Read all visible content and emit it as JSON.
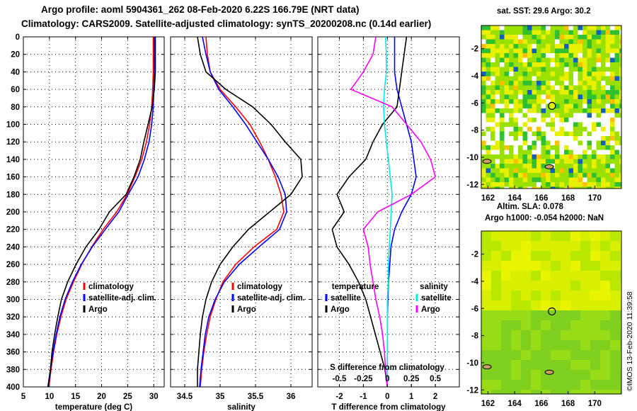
{
  "titles": {
    "line1": "Argo profile: aoml 5904361_262 08-Feb-2020 6.22S 166.79E (NRT data)",
    "line2": "Climatology: CARS2009. Satellite-adjusted climatology: synTS_20200208.nc (0.14d earlier)"
  },
  "maps": {
    "sst_title": "sat. SST: 29.6 Argo: 30.2",
    "sla_title1": "Altim. SLA: 0.078",
    "sla_title2": "Argo h1000: -0.054 h2000: NaN",
    "stamp": "©IMOS 13-Feb-2020 11:39:58",
    "lon_ticks": [
      162,
      164,
      166,
      168,
      170
    ],
    "lat_ticks": [
      -2,
      -4,
      -6,
      -8,
      -10,
      -12
    ],
    "lon_range": [
      161.5,
      172
    ],
    "lat_range": [
      -12.3,
      -0.3
    ],
    "profile_location": {
      "lon": 166.79,
      "lat": -6.22
    },
    "colors": {
      "warm": "#e8f000",
      "mid": "#9ae000",
      "cool": "#30c030",
      "cold": "#1060c0",
      "land": "#ffffff"
    }
  },
  "chart_data": [
    {
      "type": "line",
      "name": "temperature",
      "xlabel": "temperature (deg C)",
      "ylabel": "",
      "xlim": [
        5,
        32
      ],
      "ylim": [
        400,
        0
      ],
      "xticks": [
        5,
        10,
        15,
        20,
        25,
        30
      ],
      "yticks": [
        0,
        20,
        40,
        60,
        80,
        100,
        120,
        140,
        160,
        180,
        200,
        220,
        240,
        260,
        280,
        300,
        320,
        340,
        360,
        380,
        400
      ],
      "legend": [
        "climatology",
        "satellite-adj. clim.",
        "Argo"
      ],
      "series": [
        {
          "name": "climatology",
          "color": "#ff0000",
          "depth": [
            0,
            20,
            40,
            60,
            80,
            100,
            120,
            140,
            160,
            180,
            200,
            220,
            240,
            260,
            280,
            300,
            320,
            340,
            360,
            380,
            400
          ],
          "values": [
            29.9,
            29.9,
            29.9,
            29.8,
            29.6,
            29.2,
            28.6,
            27.7,
            26.4,
            24.9,
            22.9,
            20.3,
            18.1,
            16.2,
            14.6,
            13.2,
            12.2,
            11.4,
            10.8,
            10.3,
            9.9
          ]
        },
        {
          "name": "satellite-adj. clim.",
          "color": "#0000ff",
          "depth": [
            0,
            20,
            40,
            60,
            80,
            100,
            120,
            140,
            160,
            180,
            200,
            220,
            240,
            260,
            280,
            300,
            320,
            340,
            360,
            380,
            400
          ],
          "values": [
            30.1,
            30.1,
            30.1,
            30.0,
            29.9,
            29.6,
            29.1,
            28.2,
            27.0,
            25.1,
            23.3,
            20.7,
            18.2,
            16.1,
            14.4,
            13.0,
            12.0,
            11.3,
            10.7,
            10.2,
            9.8
          ]
        },
        {
          "name": "Argo",
          "color": "#000000",
          "depth": [
            0,
            20,
            40,
            60,
            80,
            100,
            120,
            140,
            160,
            180,
            200,
            220,
            240,
            260,
            280,
            300,
            320,
            340,
            360,
            380,
            400
          ],
          "values": [
            30.3,
            30.3,
            30.3,
            30.1,
            29.7,
            28.9,
            28.1,
            27.4,
            26.2,
            24.7,
            21.5,
            19.5,
            17.0,
            15.1,
            13.5,
            12.3,
            11.6,
            11.0,
            10.5,
            10.2,
            9.7
          ]
        }
      ]
    },
    {
      "type": "line",
      "name": "salinity",
      "xlabel": "salinity",
      "ylabel": "",
      "xlim": [
        34.3,
        36.3
      ],
      "ylim": [
        400,
        0
      ],
      "xticks": [
        34.5,
        35,
        35.5,
        36
      ],
      "legend": [
        "climatology",
        "satellite-adj. clim.",
        "Argo"
      ],
      "series": [
        {
          "name": "climatology",
          "color": "#ff0000",
          "depth": [
            0,
            20,
            40,
            60,
            80,
            100,
            120,
            140,
            160,
            180,
            200,
            220,
            240,
            260,
            280,
            300,
            320,
            340,
            360,
            380,
            400
          ],
          "values": [
            34.8,
            34.82,
            34.86,
            35.0,
            35.22,
            35.42,
            35.56,
            35.68,
            35.78,
            35.86,
            35.9,
            35.8,
            35.48,
            35.22,
            35.04,
            34.94,
            34.86,
            34.81,
            34.77,
            34.74,
            34.72
          ]
        },
        {
          "name": "satellite-adj. clim.",
          "color": "#0000ff",
          "depth": [
            0,
            20,
            40,
            60,
            80,
            100,
            120,
            140,
            160,
            180,
            200,
            220,
            240,
            260,
            280,
            300,
            320,
            340,
            360,
            380,
            400
          ],
          "values": [
            34.75,
            34.8,
            34.86,
            34.98,
            35.18,
            35.36,
            35.52,
            35.68,
            35.82,
            35.92,
            35.94,
            35.84,
            35.55,
            35.27,
            35.06,
            34.93,
            34.84,
            34.79,
            34.76,
            34.73,
            34.71
          ]
        },
        {
          "name": "Argo",
          "color": "#000000",
          "depth": [
            0,
            20,
            40,
            60,
            80,
            100,
            120,
            140,
            160,
            180,
            200,
            220,
            240,
            260,
            280,
            300,
            320,
            340,
            360,
            380,
            400
          ],
          "values": [
            34.68,
            34.72,
            34.8,
            35.08,
            35.46,
            35.72,
            35.92,
            36.14,
            36.16,
            36.0,
            35.7,
            35.4,
            35.18,
            35.0,
            34.88,
            34.8,
            34.75,
            34.72,
            34.7,
            34.68,
            34.68
          ]
        }
      ]
    },
    {
      "type": "line",
      "name": "difference from climatology",
      "xlabel": "T difference from climatology",
      "xlabel_top": "S difference from climatology",
      "xlim": [
        -2.9,
        3.0
      ],
      "ylim": [
        400,
        0
      ],
      "xticks": [
        -2,
        -1,
        0,
        1,
        2
      ],
      "xticks_s": [
        -0.5,
        -0.25,
        0,
        0.25,
        0.5
      ],
      "xlim_s": [
        -0.725,
        0.75
      ],
      "legend_temperature_title": "temperature",
      "legend_salinity_title": "salinity",
      "legend": [
        "satellite",
        "Argo",
        "satellite",
        "Argo"
      ],
      "series": [
        {
          "name": "temperature satellite",
          "color": "#0000ff",
          "depth": [
            0,
            20,
            40,
            60,
            80,
            100,
            120,
            140,
            160,
            180,
            200,
            220,
            240,
            260,
            280,
            300,
            320,
            340,
            360,
            380,
            400
          ],
          "values": [
            0.3,
            0.3,
            0.3,
            0.4,
            0.6,
            0.8,
            1.0,
            1.1,
            1.2,
            1.0,
            0.6,
            0.3,
            0.15,
            0.1,
            0.05,
            0.02,
            0.0,
            0.0,
            0.0,
            0.0,
            0.0
          ]
        },
        {
          "name": "temperature Argo",
          "color": "#000000",
          "depth": [
            0,
            20,
            40,
            60,
            80,
            100,
            120,
            140,
            160,
            180,
            200,
            220,
            240,
            260,
            280,
            300,
            320,
            340,
            360,
            380,
            400
          ],
          "values": [
            0.8,
            0.7,
            0.6,
            0.5,
            0.4,
            -0.2,
            -0.6,
            -0.9,
            -1.6,
            -2.1,
            -1.8,
            -2.3,
            -2.1,
            -1.6,
            -1.2,
            -0.9,
            -0.7,
            -0.5,
            -0.3,
            -0.1,
            0.0
          ]
        },
        {
          "name": "salinity satellite",
          "color": "#00e8e8",
          "depth": [
            0,
            20,
            40,
            60,
            80,
            100,
            120,
            140,
            160,
            180,
            200,
            220,
            240,
            260,
            280,
            300,
            320,
            340,
            360,
            380,
            400
          ],
          "values": [
            -0.02,
            -0.01,
            -0.01,
            -0.03,
            -0.04,
            -0.03,
            -0.01,
            0.01,
            0.03,
            0.05,
            0.04,
            0.03,
            0.02,
            0.01,
            0.01,
            0.0,
            0.0,
            0.0,
            0.0,
            0.0,
            0.0
          ]
        },
        {
          "name": "salinity Argo",
          "color": "#ff00ff",
          "depth": [
            0,
            20,
            40,
            60,
            80,
            100,
            120,
            140,
            160,
            180,
            200,
            220,
            240,
            260,
            280,
            300,
            320,
            340,
            360,
            380,
            400
          ],
          "values": [
            -0.12,
            -0.15,
            -0.25,
            -0.38,
            0.05,
            0.2,
            0.35,
            0.45,
            0.5,
            0.25,
            -0.1,
            -0.25,
            -0.2,
            -0.18,
            -0.15,
            -0.12,
            -0.08,
            -0.05,
            -0.03,
            -0.02,
            0.0
          ]
        }
      ]
    }
  ]
}
